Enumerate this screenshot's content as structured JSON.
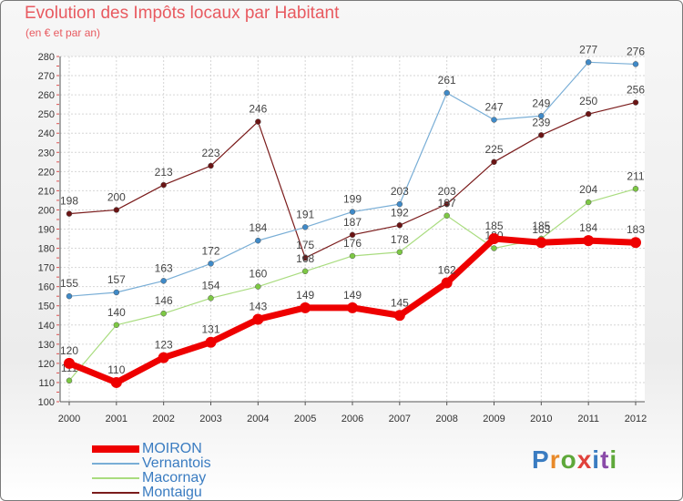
{
  "header": {
    "title": "Evolution des Impôts locaux par Habitant",
    "subtitle": "(en € et par an)"
  },
  "brand": {
    "letters": [
      "P",
      "r",
      "o",
      "x",
      "i",
      "t",
      "i"
    ],
    "colors": [
      "#3a7cc1",
      "#e88a2a",
      "#5ea83a",
      "#e0423c",
      "#3a7cc1",
      "#8a4aa8",
      "#5ea83a"
    ]
  },
  "chart_data": {
    "type": "line",
    "categories": [
      "2000",
      "2001",
      "2002",
      "2003",
      "2004",
      "2005",
      "2006",
      "2007",
      "2008",
      "2009",
      "2010",
      "2011",
      "2012"
    ],
    "ylim": [
      100,
      280
    ],
    "yticks": [
      100,
      110,
      120,
      130,
      140,
      150,
      160,
      170,
      180,
      190,
      200,
      210,
      220,
      230,
      240,
      250,
      260,
      270,
      280
    ],
    "title": "Evolution des Impôts locaux par Habitant",
    "ylabel": "(en € et par an)",
    "grid": true,
    "series": [
      {
        "name": "Montaigu",
        "color": "#7a1b1b",
        "marker": "#6b1414",
        "lineWidth": 1.2,
        "values": [
          198,
          200,
          213,
          223,
          246,
          175,
          187,
          192,
          203,
          225,
          239,
          250,
          256
        ]
      },
      {
        "name": "Macornay",
        "color": "#a9dc7f",
        "marker": "#7dc844",
        "lineWidth": 1.2,
        "values": [
          111,
          140,
          146,
          154,
          160,
          168,
          176,
          178,
          197,
          180,
          185,
          204,
          211
        ]
      },
      {
        "name": "Vernantois",
        "color": "#79aed6",
        "marker": "#3f8ac8",
        "lineWidth": 1.2,
        "values": [
          155,
          157,
          163,
          172,
          184,
          191,
          199,
          203,
          261,
          247,
          249,
          277,
          276
        ]
      },
      {
        "name": "MOIRON",
        "color": "#ee0000",
        "marker": "#ee0000",
        "lineWidth": 7,
        "values": [
          120,
          110,
          123,
          131,
          143,
          149,
          149,
          145,
          162,
          185,
          183,
          184,
          183
        ]
      }
    ]
  }
}
